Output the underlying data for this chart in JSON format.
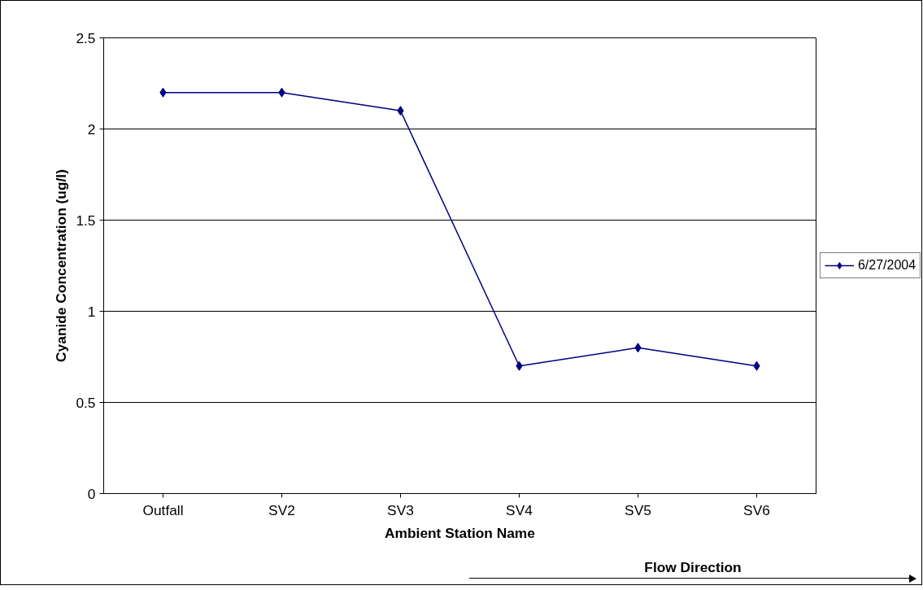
{
  "chart_data": {
    "type": "line",
    "xlabel": "Ambient Station Name",
    "ylabel": "Cyanide Concentration (ug/l)",
    "categories": [
      "Outfall",
      "SV2",
      "SV3",
      "SV4",
      "SV5",
      "SV6"
    ],
    "series": [
      {
        "name": "6/27/2004",
        "color": "#000080",
        "values": [
          2.2,
          2.2,
          2.1,
          0.7,
          0.8,
          0.7
        ]
      }
    ],
    "ylim": [
      0,
      2.5
    ],
    "yticks": [
      0,
      0.5,
      1,
      1.5,
      2,
      2.5
    ],
    "grid": "y",
    "legend": "right",
    "marker": "diamond",
    "line_style": "solid",
    "annotations": [
      "Flow Direction"
    ]
  }
}
